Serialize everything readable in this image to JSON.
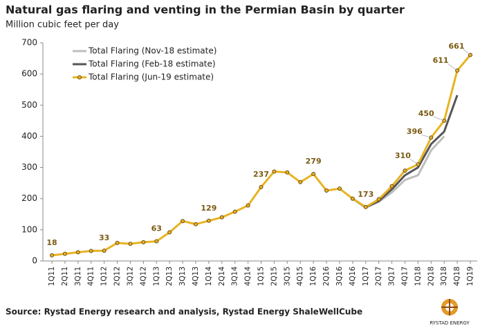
{
  "chart_data": {
    "type": "line",
    "title": "Natural gas flaring and venting in the Permian Basin by quarter",
    "subtitle": "Million cubic feet per day",
    "source": "Source: Rystad Energy research and analysis, Rystad Energy ShaleWellCube",
    "logo": "RYSTAD ENERGY",
    "categories": [
      "1Q11",
      "2Q11",
      "3Q11",
      "4Q11",
      "1Q12",
      "2Q12",
      "3Q12",
      "4Q12",
      "1Q13",
      "2Q13",
      "3Q13",
      "4Q13",
      "1Q14",
      "2Q14",
      "3Q14",
      "4Q14",
      "1Q15",
      "2Q15",
      "3Q15",
      "4Q15",
      "1Q16",
      "2Q16",
      "3Q16",
      "4Q16",
      "1Q17",
      "2Q17",
      "3Q17",
      "4Q17",
      "1Q18",
      "2Q18",
      "3Q18",
      "4Q18",
      "1Q19"
    ],
    "series": [
      {
        "name": "Total Flaring (Nov-18 estimate)",
        "color": "#bdbdbd",
        "values": [
          null,
          null,
          null,
          null,
          null,
          null,
          null,
          null,
          null,
          null,
          null,
          null,
          null,
          null,
          null,
          null,
          null,
          null,
          null,
          null,
          null,
          null,
          null,
          200,
          172,
          190,
          220,
          260,
          275,
          355,
          400,
          null,
          null
        ]
      },
      {
        "name": "Total Flaring (Feb-18 estimate)",
        "color": "#555555",
        "values": [
          null,
          null,
          null,
          null,
          null,
          null,
          null,
          null,
          null,
          null,
          null,
          null,
          null,
          null,
          null,
          null,
          null,
          null,
          null,
          null,
          null,
          null,
          null,
          200,
          172,
          192,
          230,
          275,
          300,
          375,
          415,
          532,
          null
        ]
      },
      {
        "name": "Total Flaring (Jun-19 estimate)",
        "color": "#e8b321",
        "markers": true,
        "values": [
          18,
          23,
          28,
          32,
          33,
          58,
          55,
          60,
          63,
          92,
          128,
          118,
          129,
          140,
          158,
          178,
          237,
          287,
          284,
          253,
          279,
          226,
          232,
          200,
          173,
          198,
          240,
          290,
          310,
          396,
          450,
          611,
          661
        ],
        "value_labels": [
          "18",
          null,
          null,
          null,
          "33",
          null,
          null,
          null,
          "63",
          null,
          null,
          null,
          "129",
          null,
          null,
          null,
          "237",
          null,
          null,
          null,
          "279",
          null,
          null,
          null,
          "173",
          null,
          null,
          null,
          "310",
          "396",
          "450",
          "611",
          "661"
        ]
      }
    ],
    "ylim": [
      0,
      700
    ],
    "yticks": [
      0,
      100,
      200,
      300,
      400,
      500,
      600,
      700
    ],
    "legend": "upper left"
  }
}
